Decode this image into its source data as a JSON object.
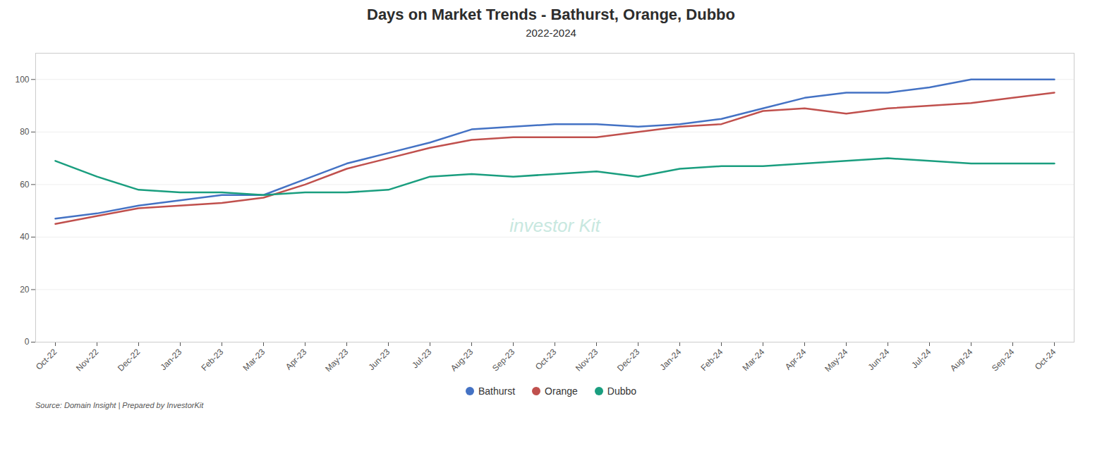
{
  "chart_data": {
    "type": "line",
    "title": "Days on Market Trends - Bathurst, Orange, Dubbo",
    "subtitle": "2022-2024",
    "source": "Source: Domain Insight | Prepared by InvestorKit",
    "annotations": [
      {
        "text": "investor Kit",
        "color": "#c8e8e0"
      }
    ],
    "categories": [
      "Oct-22",
      "Nov-22",
      "Dec-22",
      "Jan-23",
      "Feb-23",
      "Mar-23",
      "Apr-23",
      "May-23",
      "Jun-23",
      "Jul-23",
      "Aug-23",
      "Sep-23",
      "Oct-23",
      "Nov-23",
      "Dec-23",
      "Jan-24",
      "Feb-24",
      "Mar-24",
      "Apr-24",
      "May-24",
      "Jun-24",
      "Jul-24",
      "Aug-24",
      "Sep-24",
      "Oct-24"
    ],
    "series": [
      {
        "name": "Bathurst",
        "color": "#4472c4",
        "values": [
          47,
          49,
          52,
          54,
          56,
          56,
          62,
          68,
          72,
          76,
          81,
          82,
          83,
          83,
          82,
          83,
          85,
          89,
          93,
          95,
          95,
          97,
          100,
          100,
          100
        ]
      },
      {
        "name": "Orange",
        "color": "#c0504d",
        "values": [
          45,
          48,
          51,
          52,
          53,
          55,
          60,
          66,
          70,
          74,
          77,
          78,
          78,
          78,
          80,
          82,
          83,
          88,
          89,
          87,
          89,
          90,
          91,
          93,
          95
        ]
      },
      {
        "name": "Dubbo",
        "color": "#1a9e7f",
        "values": [
          69,
          63,
          58,
          57,
          57,
          56,
          57,
          57,
          58,
          63,
          64,
          63,
          64,
          65,
          63,
          66,
          67,
          67,
          68,
          69,
          70,
          69,
          68,
          68,
          68
        ]
      }
    ],
    "ylim": [
      0,
      110
    ],
    "yticks": [
      0,
      20,
      40,
      60,
      80,
      100
    ],
    "grid": true,
    "legend": "bottom"
  }
}
